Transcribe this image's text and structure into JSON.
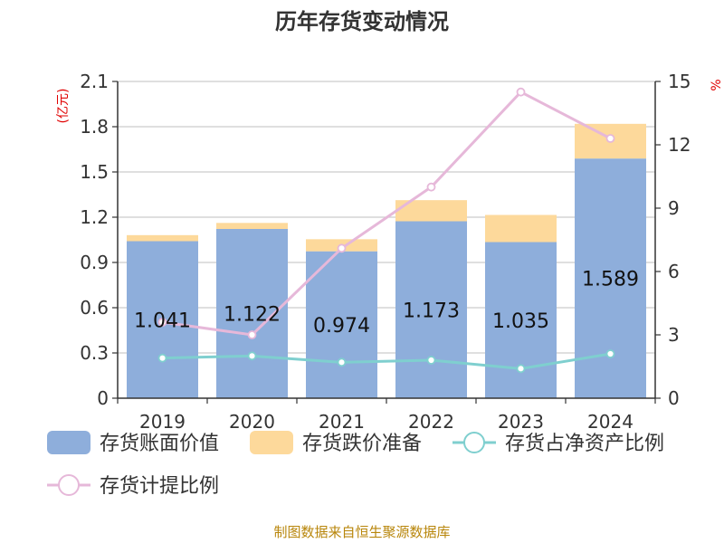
{
  "chart_data": {
    "type": "bar",
    "title": "历年存货变动情况",
    "categories": [
      "2019",
      "2020",
      "2021",
      "2022",
      "2023",
      "2024"
    ],
    "series": [
      {
        "name": "存货账面价值",
        "kind": "bar",
        "axis": "left",
        "color": "#8eaedb",
        "values": [
          1.041,
          1.122,
          0.974,
          1.173,
          1.035,
          1.589
        ],
        "data_labels": [
          "1.041",
          "1.122",
          "0.974",
          "1.173",
          "1.035",
          "1.589"
        ]
      },
      {
        "name": "存货跌价准备",
        "kind": "bar-stacked",
        "axis": "left",
        "color": "#fdd99b",
        "values": [
          0.04,
          0.04,
          0.08,
          0.14,
          0.18,
          0.23
        ]
      },
      {
        "name": "存货占净资产比例",
        "kind": "line",
        "axis": "right",
        "color": "#7fcfcf",
        "values": [
          1.9,
          2.0,
          1.7,
          1.8,
          1.4,
          2.1
        ]
      },
      {
        "name": "存货计提比例",
        "kind": "line",
        "axis": "right",
        "color": "#e6b8d9",
        "values": [
          3.6,
          3.0,
          7.1,
          10.0,
          14.5,
          12.3
        ]
      }
    ],
    "y_left": {
      "unit": "(亿元)",
      "ticks": [
        "0",
        "0.3",
        "0.6",
        "0.9",
        "1.2",
        "1.5",
        "1.8",
        "2.1"
      ],
      "range": [
        0,
        2.1
      ]
    },
    "y_right": {
      "unit": "%",
      "ticks": [
        "0",
        "3",
        "6",
        "9",
        "12",
        "15"
      ],
      "range": [
        0,
        15
      ]
    },
    "grid": true,
    "legend_position": "bottom",
    "source": "制图数据来自恒生聚源数据库"
  }
}
